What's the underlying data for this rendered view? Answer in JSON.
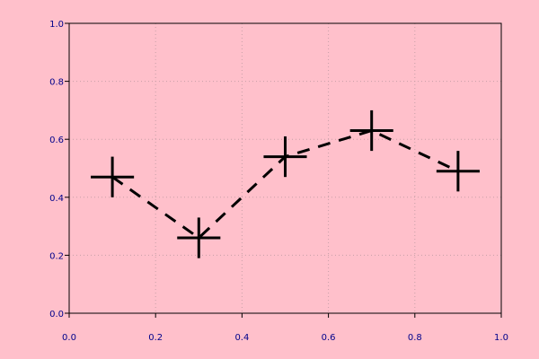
{
  "colors": {
    "background": "#ffc0cb",
    "axis": "#000000",
    "grid": "#c8a0a8",
    "tick_label": "#00008b",
    "series": "#000000"
  },
  "chart_data": {
    "type": "line",
    "title": "",
    "xlabel": "",
    "ylabel": "",
    "xlim": [
      0.0,
      1.0
    ],
    "ylim": [
      0.0,
      1.0
    ],
    "x_ticks": [
      0.0,
      0.2,
      0.4,
      0.6,
      0.8,
      1.0
    ],
    "y_ticks": [
      0.0,
      0.2,
      0.4,
      0.6,
      0.8,
      1.0
    ],
    "x_tick_labels": [
      "0.0",
      "0.2",
      "0.4",
      "0.6",
      "0.8",
      "1.0"
    ],
    "y_tick_labels": [
      "0.0",
      "0.2",
      "0.4",
      "0.6",
      "0.8",
      "1.0"
    ],
    "grid": true,
    "grid_style": "dotted",
    "legend": "none",
    "series": [
      {
        "line_style": "dashed",
        "marker": "plus",
        "x": [
          0.1,
          0.3,
          0.5,
          0.7,
          0.9
        ],
        "y": [
          0.47,
          0.26,
          0.54,
          0.63,
          0.49
        ],
        "xerr": [
          0.05,
          0.05,
          0.05,
          0.05,
          0.05
        ],
        "yerr": [
          0.07,
          0.07,
          0.07,
          0.07,
          0.07
        ]
      }
    ]
  }
}
